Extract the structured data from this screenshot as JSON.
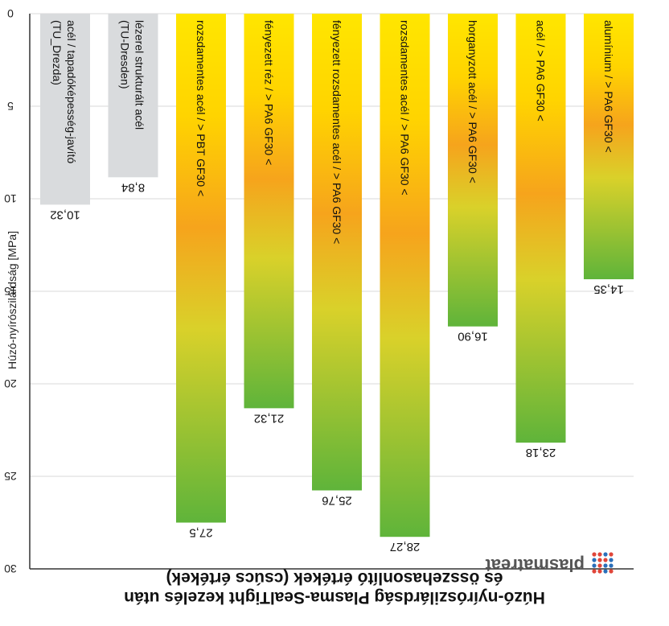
{
  "chart_data": {
    "type": "bar",
    "title": "Húzó-nyírószilárdság Plasma-SealTight kezelés után",
    "subtitle": "és összehasonlító értékek (csúcs értékek)",
    "xlabel": "",
    "ylabel": "Húzó-nyírószilárdság [MPa]",
    "ylim": [
      0,
      30
    ],
    "yticks": [
      "0",
      "5",
      "10",
      "15",
      "20",
      "25",
      "30"
    ],
    "grid": true,
    "orientation": "rotated-180",
    "categories": [
      "alumínium / > PA6 GF30 <",
      "acél / > PA6 GF30 <",
      "horganyzott acél / > PA6 GF30 <",
      "rozsdamentes acél / > PA6 GF30 <",
      "fényezett rozsdamentes acél / > PA6 GF30 <",
      "fényezett réz / > PA6 GF30 <",
      "rozsdamentes acél / > PBT GF30 <",
      "lézerel strukturált acél (TU-Dresden)",
      "acél / tapadóképesség-javító (TU_Drezda)"
    ],
    "values": [
      14.35,
      23.18,
      16.9,
      28.27,
      25.76,
      21.32,
      27.5,
      8.84,
      10.32
    ],
    "value_labels": [
      "14,35",
      "23,18",
      "16,90",
      "28,27",
      "25,76",
      "21,32",
      "27,5",
      "8,84",
      "10,32"
    ],
    "reference_flags": [
      false,
      false,
      false,
      false,
      false,
      false,
      false,
      true,
      true
    ],
    "colors": {
      "gradient_start": "#ffe600",
      "gradient_mid": "#f6a41c",
      "gradient_end": "#5fb43a",
      "reference_bar": "#d9dbdd",
      "grid": "#d9d9d9",
      "axis": "#333333",
      "logo_blue": "#2a6fba",
      "logo_red": "#e0463a"
    },
    "logo": "plasmatreat"
  }
}
